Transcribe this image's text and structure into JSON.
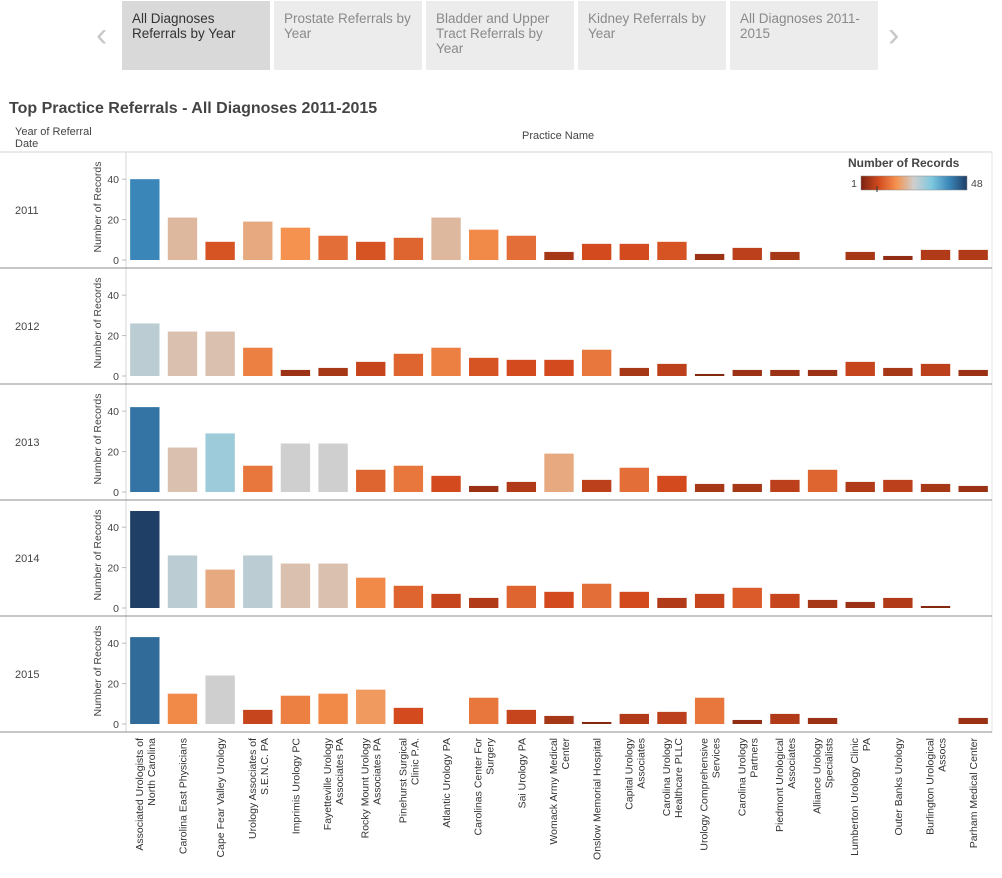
{
  "tabs": [
    {
      "label": "All Diagnoses Referrals by Year",
      "active": true
    },
    {
      "label": "Prostate Referrals by Year",
      "active": false
    },
    {
      "label": "Bladder and Upper Tract Referrals by Year",
      "active": false
    },
    {
      "label": "Kidney Referrals by Year",
      "active": false
    },
    {
      "label": "All Diagnoses 2011-2015",
      "active": false
    }
  ],
  "nav": {
    "prev_icon": "chevron-left-icon",
    "next_icon": "chevron-right-icon"
  },
  "header": {
    "title": "Top Practice Referrals - All Diagnoses 2011-2015",
    "row_header": "Year of Referral Date",
    "column_header": "Practice Name"
  },
  "legend": {
    "title": "Number of Records",
    "min_label": "1",
    "max_label": "48",
    "colors": [
      "#7a2310",
      "#d24a1e",
      "#f5924f",
      "#cfcfcf",
      "#7fc8e0",
      "#3a86b8",
      "#1f3f66"
    ]
  },
  "chart_data": {
    "type": "bar",
    "ylabel": "Number of Records",
    "ylim": [
      0,
      48
    ],
    "yticks": [
      0,
      20,
      40
    ],
    "categories": [
      "Associated Urologists of North Carolina",
      "Carolina East Physicians",
      "Cape Fear Valley Urology",
      "Urology Associates of S.E.N.C. PA",
      "Imprimis Urology PC",
      "Fayetteville Urology Associates PA",
      "Rocky Mount Urology Associates PA",
      "Pinehurst Surgical Clinic P.A.",
      "Atlantic Urology PA",
      "Carolinas Center For Surgery",
      "Sai Urology PA",
      "Womack Army Medical Center",
      "Onslow Memorial Hospital",
      "Capital Urology Associates",
      "Carolina Urology Healthcare PLLC",
      "Urology Comprehensive Services",
      "Carolina Urology Partners",
      "Piedmont Urological Associates",
      "Alliance Urology Specialists",
      "Lumberton Urology Clinic PA",
      "Outer Banks Urology",
      "Burlington Urological Assocs",
      "Parham Medical Center"
    ],
    "series": [
      {
        "name": "2011",
        "values": [
          40,
          21,
          9,
          19,
          16,
          12,
          9,
          11,
          21,
          15,
          12,
          4,
          8,
          8,
          9,
          3,
          6,
          4,
          0,
          4,
          2,
          5,
          5
        ]
      },
      {
        "name": "2012",
        "values": [
          26,
          22,
          22,
          14,
          3,
          4,
          7,
          11,
          14,
          9,
          8,
          8,
          13,
          4,
          6,
          1,
          3,
          3,
          3,
          7,
          4,
          6,
          3
        ]
      },
      {
        "name": "2013",
        "values": [
          42,
          22,
          29,
          13,
          24,
          24,
          11,
          13,
          8,
          3,
          5,
          19,
          6,
          12,
          8,
          4,
          4,
          6,
          11,
          5,
          6,
          4,
          3
        ]
      },
      {
        "name": "2014",
        "values": [
          48,
          26,
          19,
          26,
          22,
          22,
          15,
          11,
          7,
          5,
          11,
          8,
          12,
          8,
          5,
          7,
          10,
          7,
          4,
          3,
          5,
          1,
          0
        ]
      },
      {
        "name": "2015",
        "values": [
          43,
          15,
          24,
          7,
          14,
          15,
          17,
          8,
          0,
          13,
          7,
          4,
          1,
          5,
          6,
          13,
          2,
          5,
          3,
          0,
          0,
          0,
          3
        ]
      }
    ]
  }
}
